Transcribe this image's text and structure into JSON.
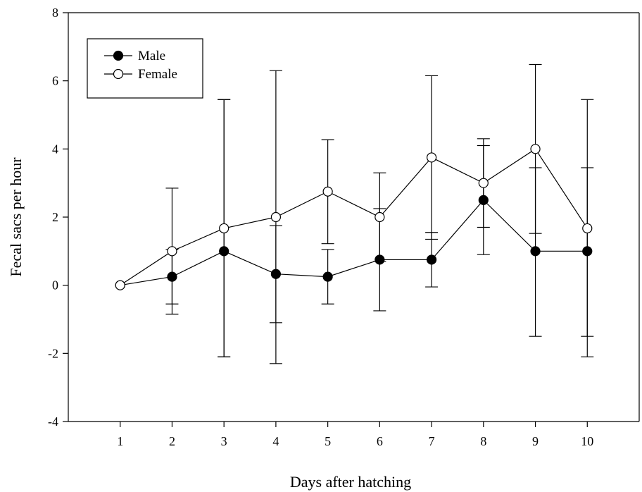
{
  "chart_data": {
    "type": "line",
    "xlabel": "Days after hatching",
    "ylabel": "Fecal sacs per hour",
    "x": [
      1,
      2,
      3,
      4,
      5,
      6,
      7,
      8,
      9,
      10
    ],
    "xlim": [
      0,
      11
    ],
    "ylim": [
      -4,
      8
    ],
    "yticks": [
      -4,
      -2,
      0,
      2,
      4,
      6,
      8
    ],
    "grid": false,
    "legend_position": "top-left",
    "series": [
      {
        "name": "Male",
        "marker": "filled-circle",
        "color": "#000000",
        "values": [
          0,
          0.25,
          1.0,
          0.33,
          0.25,
          0.75,
          0.75,
          2.5,
          1.0,
          1.0
        ],
        "error_upper": [
          0,
          1.05,
          5.45,
          1.75,
          1.05,
          2.25,
          1.55,
          4.1,
          3.45,
          3.45
        ],
        "error_lower": [
          0,
          -0.55,
          -2.1,
          -1.1,
          -0.55,
          -0.75,
          -0.05,
          0.9,
          -1.5,
          -1.5
        ]
      },
      {
        "name": "Female",
        "marker": "open-circle",
        "color": "#000000",
        "values": [
          0,
          1.0,
          1.67,
          2.0,
          2.75,
          2.0,
          3.75,
          3.0,
          4.0,
          1.67
        ],
        "error_upper": [
          0,
          2.85,
          5.45,
          6.3,
          4.27,
          3.3,
          6.15,
          4.3,
          6.48,
          5.45
        ],
        "error_lower": [
          0,
          -0.85,
          -2.1,
          -2.3,
          1.22,
          0.7,
          1.35,
          1.7,
          1.52,
          -2.1
        ]
      }
    ]
  }
}
